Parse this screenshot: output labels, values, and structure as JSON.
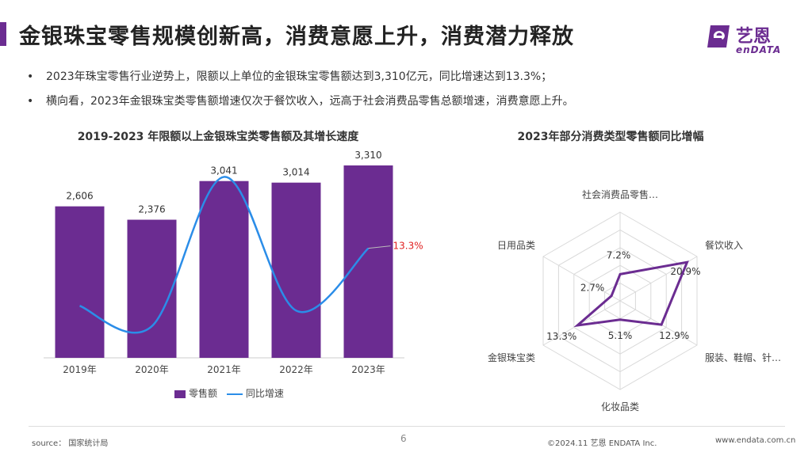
{
  "header": {
    "title": "金银珠宝零售规模创新高，消费意愿上升，消费潜力释放",
    "logo_cn": "艺恩",
    "logo_en": "enDATA"
  },
  "bullets": [
    "2023年珠宝零售行业逆势上，限额以上单位的金银珠宝零售额达到3,310亿元，同比增速达到13.3%；",
    "横向看，2023年金银珠宝类零售额增速仅次于餐饮收入，远高于社会消费品零售总额增速，消费意愿上升。"
  ],
  "colors": {
    "accent": "#6b2c91",
    "line": "#2b8de8",
    "highlight": "#e02020"
  },
  "chart_data": [
    {
      "type": "bar",
      "title": "2019-2023 年限额以上金银珠宝类零售额及其增长速度",
      "categories": [
        "2019年",
        "2020年",
        "2021年",
        "2022年",
        "2023年"
      ],
      "series": [
        {
          "name": "零售额",
          "type": "bar",
          "values": [
            2606,
            2376,
            3041,
            3014,
            3310
          ],
          "labels": [
            "2,606",
            "2,376",
            "3,041",
            "3,014",
            "3,310"
          ]
        },
        {
          "name": "同比增速",
          "type": "line",
          "values": [
            0.0,
            -4.7,
            29.8,
            -1.1,
            13.3
          ],
          "labels": [
            "",
            "",
            "",
            "",
            "13.3%"
          ]
        }
      ],
      "ylim": [
        0,
        3500
      ],
      "line_ylim": [
        -12,
        35
      ],
      "legend_position": "bottom"
    },
    {
      "type": "radar",
      "title": "2023年部分消费类型零售额同比增幅",
      "categories": [
        "社会消费品零售…",
        "餐饮收入",
        "服装、鞋帽、针…",
        "化妆品类",
        "金银珠宝类",
        "日用品类"
      ],
      "values": [
        7.2,
        20.9,
        12.9,
        5.1,
        13.3,
        2.7
      ],
      "value_labels": [
        "7.2%",
        "20.9%",
        "12.9%",
        "5.1%",
        "13.3%",
        "2.7%"
      ],
      "rlim": [
        0,
        24
      ]
    }
  ],
  "footer": {
    "source": "source： 国家统计局",
    "page": "6",
    "copyright": "©2024.11  艺恩  ENDATA Inc.",
    "website": "www.endata.com.cn"
  }
}
